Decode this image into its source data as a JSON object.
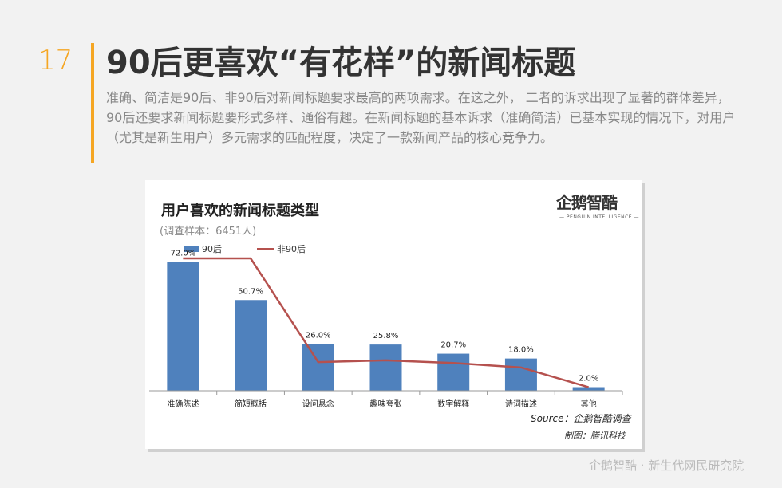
{
  "page_number": "17",
  "title": "90后更喜欢“有花样”的新闻标题",
  "intro": "准确、简洁是90后、非90后对新闻标题要求最高的两项需求。在这之外， 二者的诉求出现了显著的群体差异，90后还要求新闻标题要形式多样、通俗有趣。在新闻标题的基本诉求（准确简洁）已基本实现的情况下，对用户（尤其是新生用户）多元需求的匹配程度，决定了一款新闻产品的核心竞争力。",
  "card": {
    "logo_text": "企鹅智酷",
    "logo_sub": "— PENGUIN INTELLIGENCE —",
    "source": "Source：企鹅智酷调查",
    "maker": "制图：腾讯科技"
  },
  "footer_brand": "企鹅智酷 · 新生代网民研究院",
  "colors": {
    "accent": "#f5a623",
    "bar": "#4f81bd",
    "line": "#b5514e"
  },
  "chart_data": {
    "type": "bar",
    "title": "用户喜欢的新闻标题类型",
    "subtitle": "(调查样本：6451人)",
    "categories": [
      "准确陈述",
      "简短概括",
      "设问悬念",
      "趣味夸张",
      "数字解释",
      "诗词描述",
      "其他"
    ],
    "series": [
      {
        "name": "90后",
        "type": "bar",
        "values": [
          72.0,
          50.7,
          26.0,
          25.8,
          20.7,
          18.0,
          2.0
        ],
        "labels": [
          "72.0%",
          "50.7%",
          "26.0%",
          "25.8%",
          "20.7%",
          "18.0%",
          "2.0%"
        ]
      },
      {
        "name": "非90后",
        "type": "line",
        "values": [
          74.0,
          74.0,
          16.0,
          17.0,
          15.5,
          13.0,
          2.0
        ]
      }
    ],
    "ylim": [
      0,
      80
    ],
    "grid": false,
    "legend": "top-left"
  }
}
